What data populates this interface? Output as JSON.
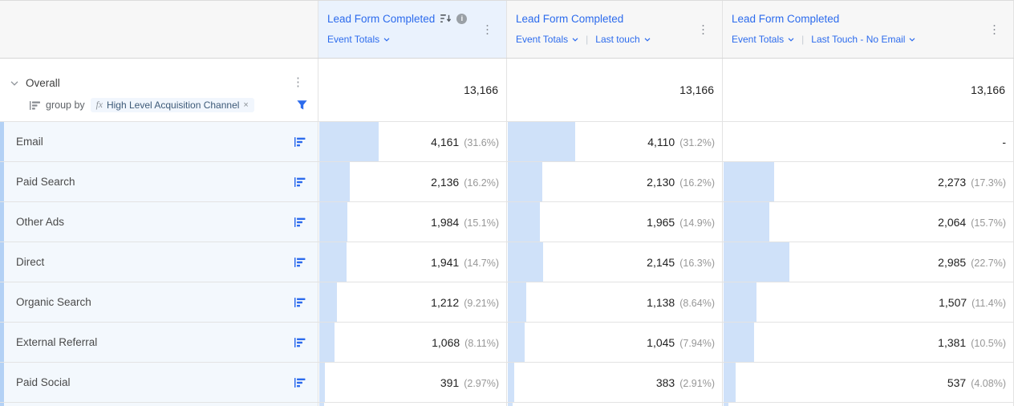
{
  "colors": {
    "link_blue": "#2c6bed",
    "bar_fill": "#cfe1f9",
    "row_stripe": "#b3d1f5",
    "label_row_bg": "#f3f8fd",
    "header_bg": "#f7f7f7",
    "highlight_header_bg": "#eaf2fd",
    "border": "#e3e3e3",
    "header_border": "#d6d6d6",
    "value_text": "#1f1f1f",
    "pct_text": "#979797",
    "label_text": "#4a4a4a",
    "muted_icon": "#8f939a"
  },
  "icons": {
    "kebab": "⋮",
    "info": "i"
  },
  "header": {
    "separator": "|",
    "columns": [
      {
        "title": "Lead Form Completed",
        "selectors": [
          "Event Totals"
        ],
        "highlighted": true,
        "has_sort_icon": true,
        "has_info_icon": true
      },
      {
        "title": "Lead Form Completed",
        "selectors": [
          "Event Totals",
          "Last touch"
        ]
      },
      {
        "title": "Lead Form Completed",
        "selectors": [
          "Event Totals",
          "Last Touch - No Email"
        ]
      }
    ]
  },
  "overall": {
    "label": "Overall",
    "group_by_label": "group by",
    "fx": "fx",
    "group_by_value": "High Level Acquisition Channel",
    "remove": "×",
    "values": [
      "13,166",
      "13,166",
      "13,166"
    ]
  },
  "rows": [
    {
      "label": "Email",
      "cells": [
        {
          "value": "4,161",
          "pct": "(31.6%)",
          "bar": 31.6
        },
        {
          "value": "4,110",
          "pct": "(31.2%)",
          "bar": 31.2
        },
        {
          "value": "-",
          "pct": null,
          "bar": 0
        }
      ]
    },
    {
      "label": "Paid Search",
      "cells": [
        {
          "value": "2,136",
          "pct": "(16.2%)",
          "bar": 16.2
        },
        {
          "value": "2,130",
          "pct": "(16.2%)",
          "bar": 16.2
        },
        {
          "value": "2,273",
          "pct": "(17.3%)",
          "bar": 17.3
        }
      ]
    },
    {
      "label": "Other Ads",
      "cells": [
        {
          "value": "1,984",
          "pct": "(15.1%)",
          "bar": 15.1
        },
        {
          "value": "1,965",
          "pct": "(14.9%)",
          "bar": 14.9
        },
        {
          "value": "2,064",
          "pct": "(15.7%)",
          "bar": 15.7
        }
      ]
    },
    {
      "label": "Direct",
      "cells": [
        {
          "value": "1,941",
          "pct": "(14.7%)",
          "bar": 14.7
        },
        {
          "value": "2,145",
          "pct": "(16.3%)",
          "bar": 16.3
        },
        {
          "value": "2,985",
          "pct": "(22.7%)",
          "bar": 22.7
        }
      ]
    },
    {
      "label": "Organic Search",
      "cells": [
        {
          "value": "1,212",
          "pct": "(9.21%)",
          "bar": 9.21
        },
        {
          "value": "1,138",
          "pct": "(8.64%)",
          "bar": 8.64
        },
        {
          "value": "1,507",
          "pct": "(11.4%)",
          "bar": 11.4
        }
      ]
    },
    {
      "label": "External Referral",
      "cells": [
        {
          "value": "1,068",
          "pct": "(8.11%)",
          "bar": 8.11
        },
        {
          "value": "1,045",
          "pct": "(7.94%)",
          "bar": 7.94
        },
        {
          "value": "1,381",
          "pct": "(10.5%)",
          "bar": 10.5
        }
      ]
    },
    {
      "label": "Paid Social",
      "cells": [
        {
          "value": "391",
          "pct": "(2.97%)",
          "bar": 2.97
        },
        {
          "value": "383",
          "pct": "(2.91%)",
          "bar": 2.91
        },
        {
          "value": "537",
          "pct": "(4.08%)",
          "bar": 4.08
        }
      ]
    }
  ]
}
